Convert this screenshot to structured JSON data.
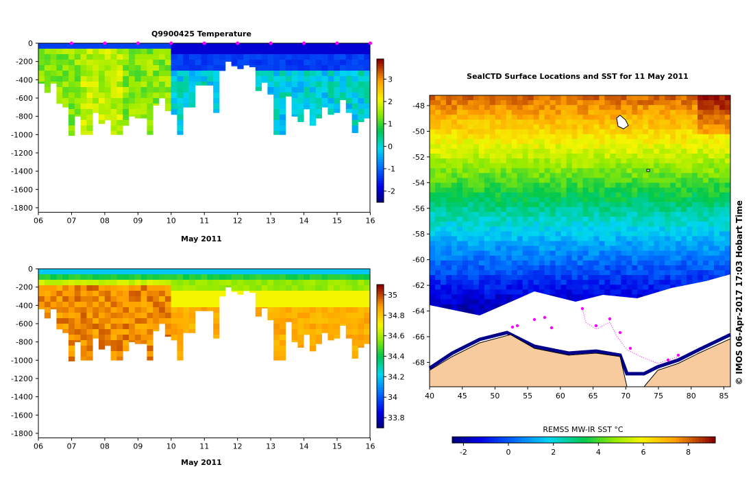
{
  "chart_data": [
    {
      "type": "heatmap",
      "title": "Q9900425  Temperature",
      "xlabel": "May 2011",
      "x_tick_labels": [
        "06",
        "07",
        "08",
        "09",
        "10",
        "11",
        "12",
        "13",
        "14",
        "15",
        "16"
      ],
      "xlim": [
        6,
        16.1
      ],
      "y_tick_labels": [
        "0",
        "-200",
        "-400",
        "-600",
        "-800",
        "-1000",
        "-1200",
        "-1400",
        "-1600",
        "-1800"
      ],
      "ylim": [
        -1850,
        0
      ],
      "colorbar_ticks": [
        "3",
        "2",
        "1",
        "0",
        "-1",
        "-2"
      ],
      "colorbar_range": [
        -2.5,
        3.9
      ],
      "profile_markers_day": [
        7,
        8,
        9,
        10,
        11,
        12,
        13,
        14,
        15,
        16
      ]
    },
    {
      "type": "heatmap",
      "title": "",
      "xlabel": "May 2011",
      "x_tick_labels": [
        "06",
        "07",
        "08",
        "09",
        "10",
        "11",
        "12",
        "13",
        "14",
        "15",
        "16"
      ],
      "xlim": [
        6,
        16.1
      ],
      "y_tick_labels": [
        "0",
        "-200",
        "-400",
        "-600",
        "-800",
        "-1000",
        "-1200",
        "-1400",
        "-1600",
        "-1800"
      ],
      "ylim": [
        -1850,
        0
      ],
      "colorbar_ticks": [
        "35",
        "34.8",
        "34.6",
        "34.4",
        "34.2",
        "34",
        "33.8"
      ],
      "colorbar_range": [
        33.7,
        35.1
      ]
    },
    {
      "type": "heatmap",
      "title": "SealCTD Surface Locations and SST for 11 May 2011",
      "x_tick_labels": [
        "40",
        "45",
        "50",
        "55",
        "60",
        "65",
        "70",
        "75",
        "80",
        "85"
      ],
      "xlim": [
        40,
        86
      ],
      "y_tick_labels": [
        "-48",
        "-50",
        "-52",
        "-54",
        "-56",
        "-58",
        "-60",
        "-62",
        "-64",
        "-66",
        "-68"
      ],
      "ylim": [
        -69.9,
        -47.2
      ],
      "colorbar_label": "REMSS MW-IR SST °C",
      "colorbar_ticks": [
        "-2",
        "0",
        "2",
        "4",
        "6",
        "8"
      ],
      "colorbar_range": [
        -2.5,
        9.2
      ],
      "credit": "© IMOS 06-Apr-2017 17:03 Hobart Time"
    }
  ],
  "colors": {
    "land": "#f8cb9f",
    "ice": "#ffffff",
    "track": "#ff00ff",
    "marker": "#ff00ff"
  }
}
